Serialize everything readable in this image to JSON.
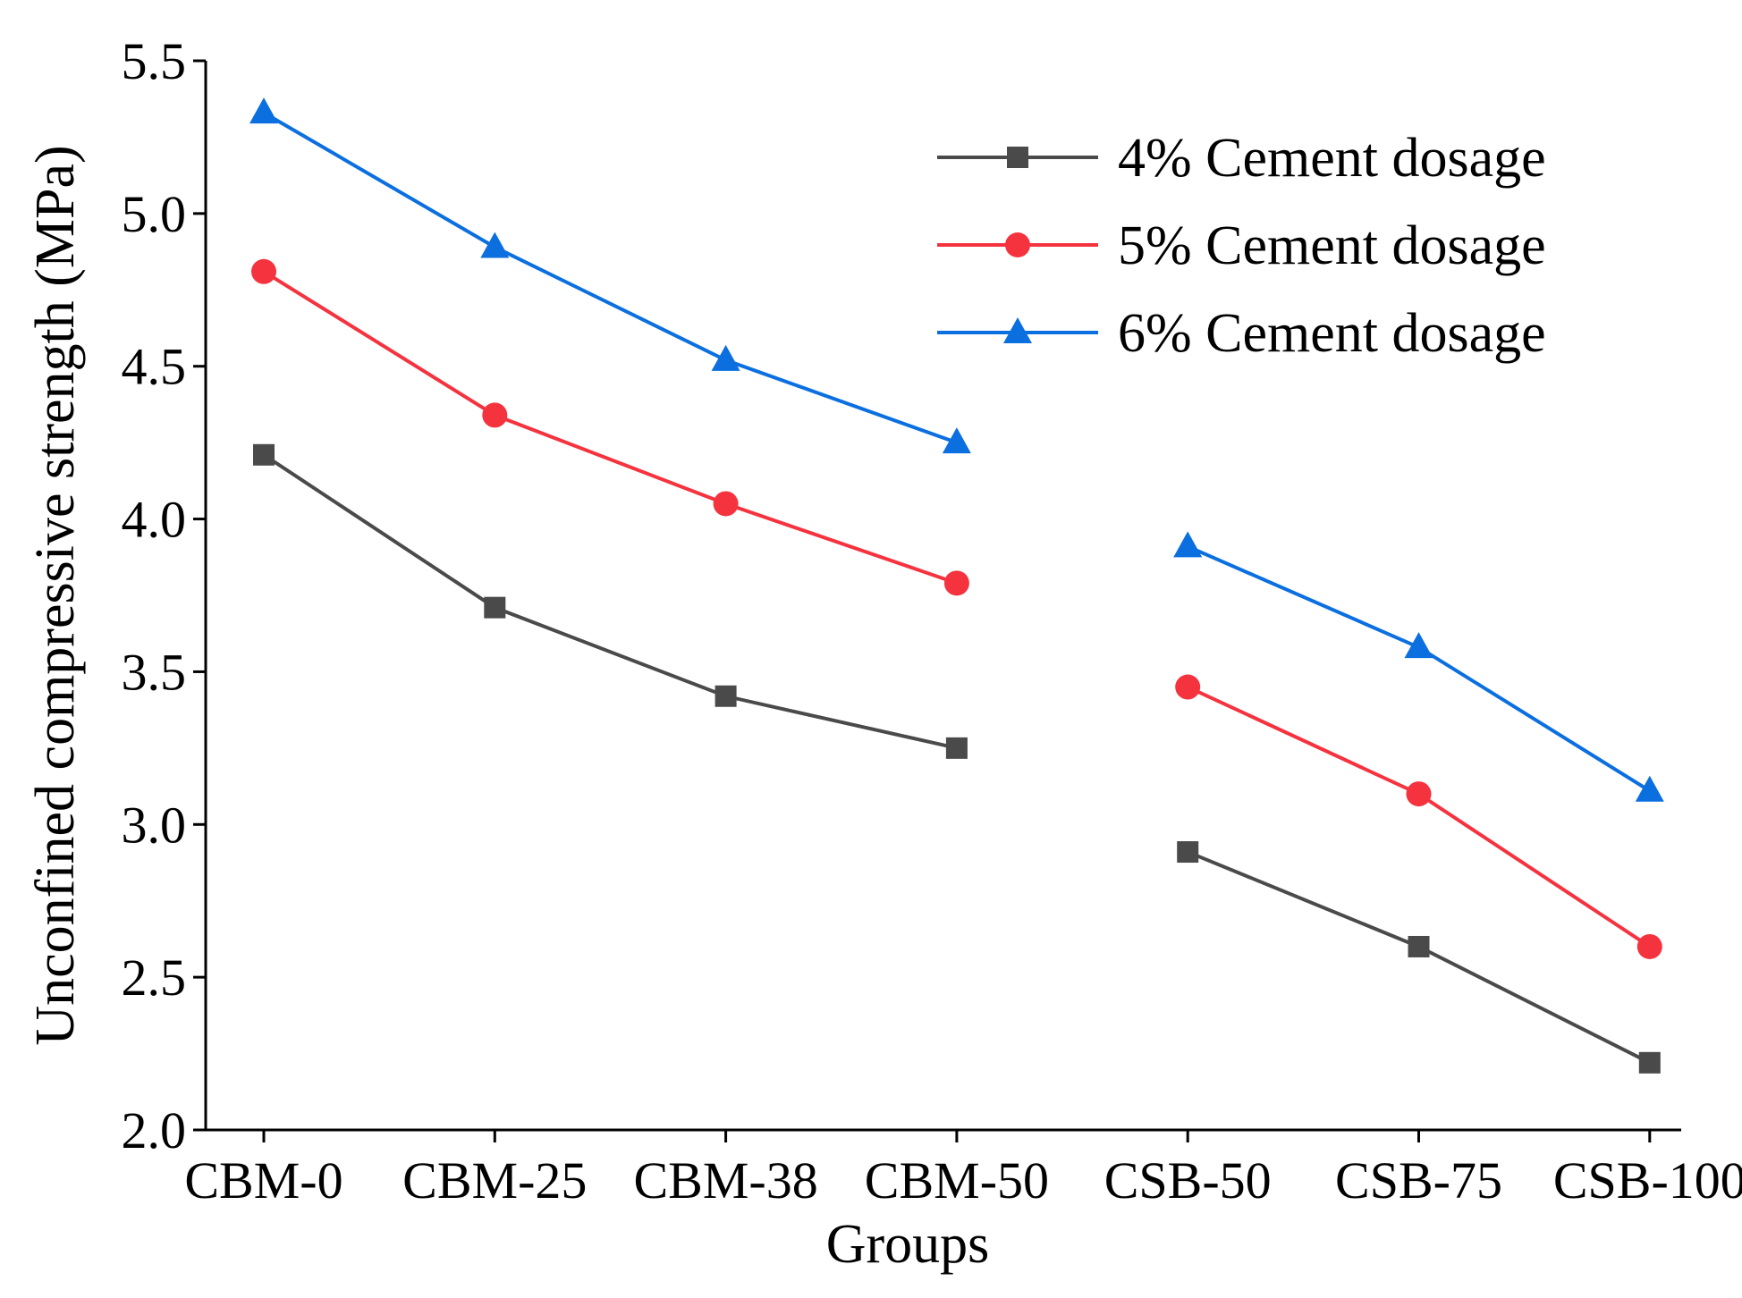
{
  "chart_data": {
    "type": "line",
    "xlabel": "Groups",
    "ylabel": "Unconfined compressive strength (MPa)",
    "categories": [
      "CBM-0",
      "CBM-25",
      "CBM-38",
      "CBM-50",
      "CSB-50",
      "CSB-75",
      "CSB-100"
    ],
    "ylim": [
      2.0,
      5.5
    ],
    "yticks": [
      "2.0",
      "2.5",
      "3.0",
      "3.5",
      "4.0",
      "4.5",
      "5.0",
      "5.5"
    ],
    "grid": false,
    "legend_position": "top-right",
    "line_breaks_after": [
      "CBM-50"
    ],
    "series": [
      {
        "name": "4% Cement dosage",
        "color": "#4a4a4a",
        "marker": "square",
        "values": [
          4.21,
          3.71,
          3.42,
          3.25,
          2.91,
          2.6,
          2.22
        ]
      },
      {
        "name": "5% Cement dosage",
        "color": "#f5333f",
        "marker": "circle",
        "values": [
          4.81,
          4.34,
          4.05,
          3.79,
          3.45,
          3.1,
          2.6
        ]
      },
      {
        "name": "6% Cement dosage",
        "color": "#0b6fe0",
        "marker": "triangle",
        "values": [
          5.33,
          4.89,
          4.52,
          4.25,
          3.91,
          3.58,
          3.11
        ]
      }
    ]
  }
}
